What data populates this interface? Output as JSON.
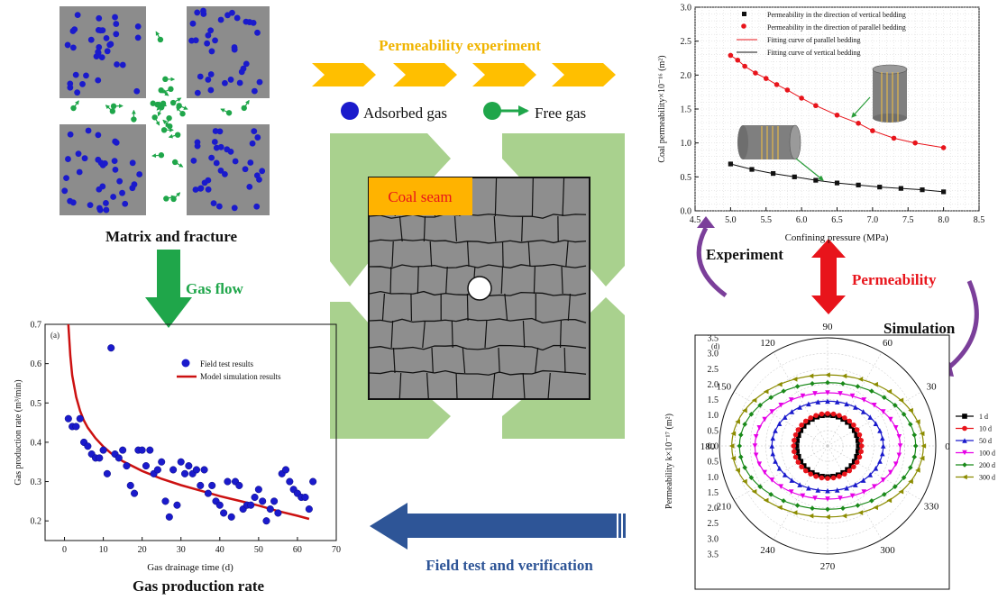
{
  "matrix_panel": {
    "caption": "Matrix and fracture",
    "gas_flow_label": "Gas flow"
  },
  "center": {
    "experiment_title": "Permeability experiment",
    "legend_adsorbed": "Adsorbed gas",
    "legend_free": "Free gas",
    "coal_seam_label": "Coal seam",
    "field_test_label": "Field test and verification"
  },
  "right_labels": {
    "experiment": "Experiment",
    "permeability": "Permeability",
    "simulation": "Simulation"
  },
  "colors": {
    "matrix_gray": "#8c8c8c",
    "adsorbed_blue": "#1a1acc",
    "free_green": "#1fa64a",
    "arrow_orange": "#ffbf00",
    "coal_seam_bg": "#ffb300",
    "coal_seam_text": "#e8141b",
    "light_green": "#a9d18e",
    "field_arrow": "#2e5597",
    "red": "#e8141b",
    "purple": "#7b3f9a"
  },
  "chart_data": [
    {
      "id": "gas-production",
      "type": "scatter",
      "panel_label": "(a)",
      "caption": "Gas production rate",
      "xlabel": "Gas drainage time (d)",
      "ylabel": "Gas production rate (m³/min)",
      "xlim": [
        -5,
        70
      ],
      "ylim": [
        0.15,
        0.7
      ],
      "xticks": [
        0,
        10,
        20,
        30,
        40,
        50,
        60,
        70
      ],
      "yticks": [
        0.2,
        0.3,
        0.4,
        0.5,
        0.6,
        0.7
      ],
      "legend": [
        "Field test results",
        "Model simulation results"
      ],
      "field_points": [
        [
          1,
          0.46
        ],
        [
          2,
          0.44
        ],
        [
          3,
          0.44
        ],
        [
          4,
          0.46
        ],
        [
          5,
          0.4
        ],
        [
          6,
          0.39
        ],
        [
          7,
          0.37
        ],
        [
          8,
          0.36
        ],
        [
          9,
          0.36
        ],
        [
          10,
          0.38
        ],
        [
          11,
          0.32
        ],
        [
          12,
          0.64
        ],
        [
          13,
          0.37
        ],
        [
          14,
          0.36
        ],
        [
          15,
          0.38
        ],
        [
          16,
          0.34
        ],
        [
          17,
          0.29
        ],
        [
          18,
          0.27
        ],
        [
          19,
          0.38
        ],
        [
          20,
          0.38
        ],
        [
          21,
          0.34
        ],
        [
          22,
          0.38
        ],
        [
          23,
          0.32
        ],
        [
          24,
          0.33
        ],
        [
          25,
          0.35
        ],
        [
          26,
          0.25
        ],
        [
          27,
          0.21
        ],
        [
          28,
          0.33
        ],
        [
          29,
          0.24
        ],
        [
          30,
          0.35
        ],
        [
          31,
          0.32
        ],
        [
          32,
          0.34
        ],
        [
          33,
          0.32
        ],
        [
          34,
          0.33
        ],
        [
          35,
          0.29
        ],
        [
          36,
          0.33
        ],
        [
          37,
          0.27
        ],
        [
          38,
          0.29
        ],
        [
          39,
          0.25
        ],
        [
          40,
          0.24
        ],
        [
          41,
          0.22
        ],
        [
          42,
          0.3
        ],
        [
          43,
          0.21
        ],
        [
          44,
          0.3
        ],
        [
          45,
          0.29
        ],
        [
          46,
          0.23
        ],
        [
          47,
          0.24
        ],
        [
          48,
          0.24
        ],
        [
          49,
          0.26
        ],
        [
          50,
          0.28
        ],
        [
          51,
          0.25
        ],
        [
          52,
          0.2
        ],
        [
          53,
          0.23
        ],
        [
          54,
          0.25
        ],
        [
          55,
          0.22
        ],
        [
          56,
          0.32
        ],
        [
          57,
          0.33
        ],
        [
          58,
          0.3
        ],
        [
          59,
          0.28
        ],
        [
          60,
          0.27
        ],
        [
          61,
          0.26
        ],
        [
          62,
          0.26
        ],
        [
          63,
          0.23
        ],
        [
          64,
          0.3
        ]
      ],
      "model_curve": [
        [
          1,
          0.7
        ],
        [
          1.5,
          0.62
        ],
        [
          2,
          0.57
        ],
        [
          3,
          0.515
        ],
        [
          4,
          0.48
        ],
        [
          5,
          0.455
        ],
        [
          6,
          0.437
        ],
        [
          8,
          0.41
        ],
        [
          10,
          0.389
        ],
        [
          12,
          0.372
        ],
        [
          15,
          0.352
        ],
        [
          20,
          0.327
        ],
        [
          25,
          0.307
        ],
        [
          30,
          0.291
        ],
        [
          35,
          0.277
        ],
        [
          40,
          0.263
        ],
        [
          45,
          0.251
        ],
        [
          50,
          0.239
        ],
        [
          55,
          0.225
        ],
        [
          60,
          0.213
        ],
        [
          63,
          0.205
        ]
      ]
    },
    {
      "id": "coal-permeability",
      "type": "line",
      "xlabel": "Confining pressure (MPa)",
      "ylabel": "Coal permeability×10⁻¹⁶ (m²)",
      "xlim": [
        4.5,
        8.5
      ],
      "ylim": [
        0.0,
        3.0
      ],
      "xticks": [
        "4.5",
        "5.0",
        "5.5",
        "6.0",
        "6.5",
        "7.0",
        "7.5",
        "8.0",
        "8.5"
      ],
      "yticks": [
        "0.0",
        "0.5",
        "1.0",
        "1.5",
        "2.0",
        "2.5",
        "3.0"
      ],
      "legend": [
        "Permeability in the direction of vertical bedding",
        "Permeability in the direction of parallel bedding",
        "Fitting curve of parallel bedding",
        "Fitting curve of vertical bedding"
      ],
      "series": [
        {
          "name": "Permeability in the direction of vertical bedding",
          "x": [
            5.0,
            5.3,
            5.6,
            5.9,
            6.2,
            6.5,
            6.8,
            7.1,
            7.4,
            7.7,
            8.0
          ],
          "y": [
            0.69,
            0.61,
            0.55,
            0.5,
            0.45,
            0.41,
            0.38,
            0.35,
            0.33,
            0.31,
            0.28
          ]
        },
        {
          "name": "Permeability in the direction of parallel bedding",
          "x": [
            5.0,
            5.1,
            5.2,
            5.35,
            5.5,
            5.65,
            5.8,
            6.0,
            6.2,
            6.5,
            6.8,
            7.0,
            7.3,
            7.6,
            8.0
          ],
          "y": [
            2.29,
            2.22,
            2.13,
            2.03,
            1.95,
            1.86,
            1.78,
            1.66,
            1.55,
            1.41,
            1.29,
            1.18,
            1.07,
            1.0,
            0.93
          ]
        }
      ]
    },
    {
      "id": "polar-permeability",
      "type": "polar",
      "panel_label": "(d)",
      "ylabel": "Permeability k×10⁻¹⁷ (m²)",
      "angle_labels": [
        "0",
        "30",
        "60",
        "90",
        "120",
        "150",
        "180",
        "210",
        "240",
        "270",
        "300",
        "330"
      ],
      "radial_ticks": [
        "3.5",
        "3.0",
        "2.5",
        "2.0",
        "1.5",
        "1.0",
        "0.5",
        "0.0",
        "0.5",
        "1.0",
        "1.5",
        "2.0",
        "2.5",
        "3.0",
        "3.5"
      ],
      "rmax": 3.5,
      "series": [
        {
          "name": "1 d",
          "rx": 1.0,
          "ry": 1.0,
          "color": "#000000",
          "marker": "square"
        },
        {
          "name": "10 d",
          "rx": 1.1,
          "ry": 1.05,
          "color": "#e8141b",
          "marker": "circle"
        },
        {
          "name": "50 d",
          "rx": 1.8,
          "ry": 1.45,
          "color": "#1a1acc",
          "marker": "triangle-up"
        },
        {
          "name": "100 d",
          "rx": 2.35,
          "ry": 1.72,
          "color": "#e600e6",
          "marker": "triangle-down"
        },
        {
          "name": "200 d",
          "rx": 2.85,
          "ry": 2.05,
          "color": "#1a8a1a",
          "marker": "diamond"
        },
        {
          "name": "300 d",
          "rx": 3.1,
          "ry": 2.3,
          "color": "#8c8c00",
          "marker": "triangle-left"
        }
      ]
    }
  ]
}
